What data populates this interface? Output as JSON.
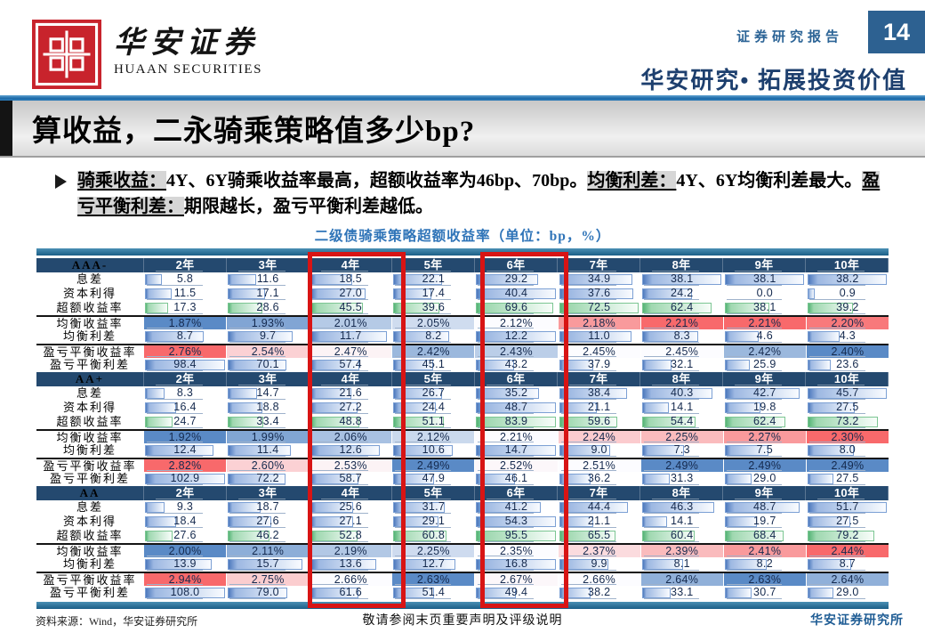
{
  "header": {
    "logo_cn": "华安证券",
    "logo_en": "HUAAN SECURITIES",
    "report_type": "证券研究报告",
    "page_number": "14",
    "tagline": "华安研究• 拓展投资价值"
  },
  "title": "算收益，二永骑乘策略值多少bp?",
  "bullet": {
    "segments": [
      {
        "text": "骑乘收益：",
        "highlight": true
      },
      {
        "text": "4Y、6Y骑乘收益率最高，超额收益率为46bp、70bp。",
        "highlight": false
      },
      {
        "text": "均衡利差：",
        "highlight": true
      },
      {
        "text": "4Y、6Y均衡利差最大。",
        "highlight": false
      },
      {
        "text": "盈亏平衡利差：",
        "highlight": true
      },
      {
        "text": "期限越长，盈亏平衡利差越低。",
        "highlight": false
      }
    ]
  },
  "table": {
    "title": "二级债骑乘策略超额收益率（单位：bp，%）",
    "columns": [
      "2年",
      "3年",
      "4年",
      "5年",
      "6年",
      "7年",
      "8年",
      "9年",
      "10年"
    ],
    "highlight_columns": [
      "4年",
      "6年"
    ],
    "sections": [
      {
        "rating": "AAA-",
        "rows": [
          {
            "label": "息差",
            "style": "bar-blue",
            "format": "bp",
            "values": [
              5.8,
              11.6,
              18.5,
              22.1,
              29.2,
              34.9,
              38.1,
              38.1,
              38.2
            ]
          },
          {
            "label": "资本利得",
            "style": "bar-blue",
            "format": "bp",
            "values": [
              11.5,
              17.1,
              27.0,
              17.4,
              40.4,
              37.6,
              24.2,
              0.0,
              0.9
            ]
          },
          {
            "label": "超额收益率",
            "style": "bar-green",
            "format": "bp",
            "values": [
              17.3,
              28.6,
              45.5,
              39.6,
              69.6,
              72.5,
              62.4,
              38.1,
              39.2
            ]
          },
          {
            "label": "均衡收益率",
            "style": "scale",
            "format": "pct",
            "values": [
              1.87,
              1.93,
              2.01,
              2.05,
              2.12,
              2.18,
              2.21,
              2.21,
              2.2
            ]
          },
          {
            "label": "均衡利差",
            "style": "bar-blue",
            "format": "bp",
            "values": [
              8.7,
              9.7,
              11.7,
              8.2,
              12.2,
              11.0,
              8.3,
              4.6,
              4.3
            ]
          },
          {
            "label": "盈亏平衡收益率",
            "style": "scale",
            "format": "pct",
            "values": [
              2.76,
              2.54,
              2.47,
              2.42,
              2.43,
              2.45,
              2.45,
              2.42,
              2.4
            ]
          },
          {
            "label": "盈亏平衡利差",
            "style": "bar-blue",
            "format": "bp",
            "values": [
              98.4,
              70.1,
              57.4,
              45.1,
              43.2,
              37.9,
              32.1,
              25.9,
              23.6
            ]
          }
        ]
      },
      {
        "rating": "AA+",
        "rows": [
          {
            "label": "息差",
            "style": "bar-blue",
            "format": "bp",
            "values": [
              8.3,
              14.7,
              21.6,
              26.7,
              35.2,
              38.4,
              40.3,
              42.7,
              45.7
            ]
          },
          {
            "label": "资本利得",
            "style": "bar-blue",
            "format": "bp",
            "values": [
              16.4,
              18.8,
              27.2,
              24.4,
              48.7,
              21.1,
              14.1,
              19.8,
              27.5
            ]
          },
          {
            "label": "超额收益率",
            "style": "bar-green",
            "format": "bp",
            "values": [
              24.7,
              33.4,
              48.8,
              51.1,
              83.9,
              59.6,
              54.4,
              62.4,
              73.2
            ]
          },
          {
            "label": "均衡收益率",
            "style": "scale",
            "format": "pct",
            "values": [
              1.92,
              1.99,
              2.06,
              2.12,
              2.21,
              2.24,
              2.25,
              2.27,
              2.3
            ]
          },
          {
            "label": "均衡利差",
            "style": "bar-blue",
            "format": "bp",
            "values": [
              12.4,
              11.4,
              12.6,
              10.6,
              14.7,
              9.0,
              7.3,
              7.5,
              8.0
            ]
          },
          {
            "label": "盈亏平衡收益率",
            "style": "scale",
            "format": "pct",
            "values": [
              2.82,
              2.6,
              2.53,
              2.49,
              2.52,
              2.51,
              2.49,
              2.49,
              2.49
            ]
          },
          {
            "label": "盈亏平衡利差",
            "style": "bar-blue",
            "format": "bp",
            "values": [
              102.9,
              72.2,
              58.7,
              47.9,
              46.1,
              36.2,
              31.3,
              29.0,
              27.5
            ]
          }
        ]
      },
      {
        "rating": "AA",
        "rows": [
          {
            "label": "息差",
            "style": "bar-blue",
            "format": "bp",
            "values": [
              9.3,
              18.7,
              25.6,
              31.7,
              41.2,
              44.4,
              46.3,
              48.7,
              51.7
            ]
          },
          {
            "label": "资本利得",
            "style": "bar-blue",
            "format": "bp",
            "values": [
              18.4,
              27.6,
              27.1,
              29.1,
              54.3,
              21.1,
              14.1,
              19.7,
              27.5
            ]
          },
          {
            "label": "超额收益率",
            "style": "bar-green",
            "format": "bp",
            "values": [
              27.6,
              46.2,
              52.8,
              60.8,
              95.5,
              65.5,
              60.4,
              68.4,
              79.2
            ]
          },
          {
            "label": "均衡收益率",
            "style": "scale",
            "format": "pct",
            "values": [
              2.0,
              2.11,
              2.19,
              2.25,
              2.35,
              2.37,
              2.39,
              2.41,
              2.44
            ]
          },
          {
            "label": "均衡利差",
            "style": "bar-blue",
            "format": "bp",
            "values": [
              13.9,
              15.7,
              13.6,
              12.7,
              16.8,
              9.9,
              8.1,
              8.2,
              8.7
            ]
          },
          {
            "label": "盈亏平衡收益率",
            "style": "scale",
            "format": "pct",
            "values": [
              2.94,
              2.75,
              2.66,
              2.63,
              2.67,
              2.66,
              2.64,
              2.63,
              2.64
            ]
          },
          {
            "label": "盈亏平衡利差",
            "style": "bar-blue",
            "format": "bp",
            "values": [
              108.0,
              79.0,
              61.6,
              51.4,
              49.4,
              38.2,
              33.1,
              30.7,
              29.0
            ]
          }
        ]
      }
    ]
  },
  "footer": {
    "source": "资料来源：Wind，华安证券研究所",
    "disclaimer": "敬请参阅末页重要声明及评级说明",
    "institute": "华安证券研究所"
  },
  "colors": {
    "accent_red": "#d81414",
    "header_navy": "#24496f",
    "teal_bar": "#1c5e87",
    "bar_blue": "#638ec6",
    "bar_green": "#63c384",
    "scale_low_blue": "#5a8ac6",
    "scale_mid_white": "#fcfcff",
    "scale_high_red": "#f8696b",
    "brand_red": "#c8232c",
    "title_blue": "#2f74b8",
    "tagline_navy": "#1d3f6e"
  }
}
